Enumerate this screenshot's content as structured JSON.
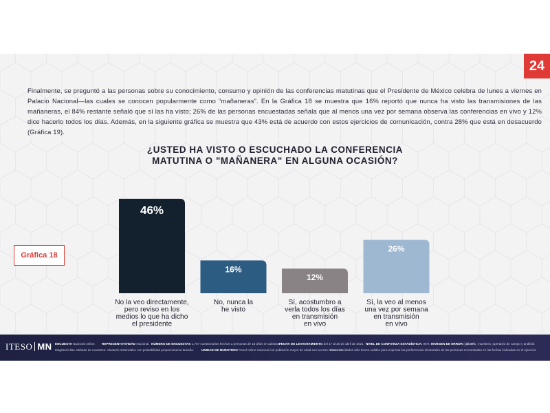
{
  "page_number": "24",
  "intro_text": "Finalmente, se preguntó a las personas sobre su conocimiento, consumo y opinión de las conferencias matutinas que el Presidente de México celebra de lunes a viernes en Palacio Nacional—las cuales se conocen popularmente como “mañaneras”. En la Gráfica 18 se muestra que 16% reportó que nunca ha visto las transmisiones de las mañaneras, el 84% restante señaló que sí las ha visto; 26% de las personas encuestadas señala que al menos una vez por semana observa las conferencias en vivo y 12% dice hacerlo todos los días. Además, en la siguiente gráfica se muestra que 43% está de acuerdo con estos ejercicios de comunicación, contra 28% que está en desacuerdo (Gráfica 19).",
  "figure_label": "Gráfica 18",
  "chart_data": {
    "type": "bar",
    "title": "¿Usted ha visto o escuchado la conferencia matutina o \"mañanera\" en alguna ocasión?",
    "categories": [
      "No la veo directamente, pero reviso en los medios lo que ha dicho el presidente",
      "No, nunca la he visto",
      "Sí, acostumbro a verla todos los días en transmisión en vivo",
      "Sí, la veo al menos una vez por semana en transmisión en vivo"
    ],
    "category_lines": [
      [
        "No la veo directamente,",
        "pero reviso en los",
        "medios lo que ha dicho",
        "el presidente"
      ],
      [
        "No, nunca la",
        "he visto"
      ],
      [
        "Sí, acostumbro a",
        "verla todos los días",
        "en transmisión",
        "en vivo"
      ],
      [
        "Sí, la veo al menos",
        "una vez por semana",
        "en transmisión",
        "en vivo"
      ]
    ],
    "values": [
      46,
      16,
      12,
      26
    ],
    "value_labels": [
      "46%",
      "16%",
      "12%",
      "26%"
    ],
    "colors": [
      "#13202e",
      "#2d5c82",
      "#8a8385",
      "#9eb8d2"
    ],
    "label_colors": [
      "#ffffff",
      "#ffffff",
      "#ffffff",
      "#ffffff"
    ],
    "grid": false,
    "legend": "none"
  },
  "footer": {
    "logo_left": "ITESO",
    "logo_right": "MN",
    "row1": [
      {
        "key": "ENCUESTA",
        "value": "Nacional online."
      },
      {
        "key": "REPRESENTATIVIDAD",
        "value": "Nacional."
      },
      {
        "key": "NÚMERO DE ENCUESTAS",
        "value": "1,757 cuestionarios hechos a personas de 18 años en adelante."
      },
      {
        "key": "FECHA DE LEVANTAMIENTO",
        "value": "del 17 al 28 de abril de 2021"
      },
      {
        "key": "NIVEL DE CONFIANZA ESTADÍSTICA:",
        "value": "95%"
      },
      {
        "key": "MARGEN DE ERROR",
        "value": "(±)2.4%"
      },
      {
        "key": "",
        "value": "Diseño, muestreo, operativo de campo y análisis:"
      }
    ],
    "row2": [
      {
        "key": "",
        "value": "MagisteriAlias. Método de muestreo: Aleatorio sistemático con probabilidad proporcional al tamaño."
      },
      {
        "key": "UNIDAD DE MUESTREO",
        "value": "Panel online nacional con población mayor de edad con acceso a internet."
      },
      {
        "key": "",
        "value": "Estos resultados sólo tienen validez para expresar las preferencias electorales de las personas encuestadas en las fechas indicadas en el ejercicio."
      }
    ]
  }
}
